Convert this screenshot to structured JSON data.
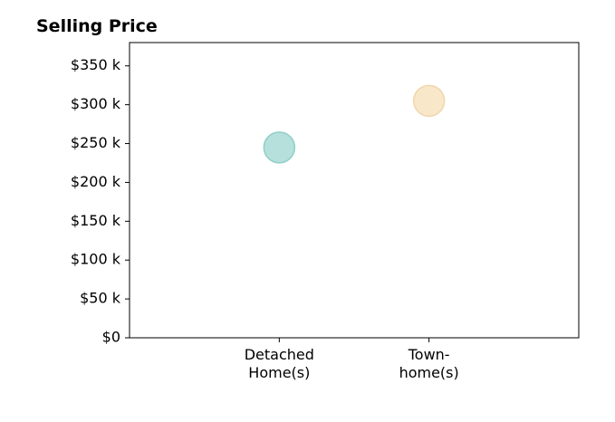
{
  "chart_data": {
    "type": "scatter",
    "title": "Selling Price",
    "xlabel": "",
    "ylabel": "",
    "categories": [
      "Detached\nHome(s)",
      "Town-\nhome(s)"
    ],
    "values": [
      245000,
      305000
    ],
    "point_colors": [
      "#b6e0dc",
      "#f8e7c8"
    ],
    "point_edge_colors": [
      "#8fcfc8",
      "#efd7ae"
    ],
    "ylim": [
      0,
      380000
    ],
    "yticks": [
      0,
      50000,
      100000,
      150000,
      200000,
      250000,
      300000,
      350000
    ],
    "ytick_labels": [
      "$0",
      "$50 k",
      "$100 k",
      "$150 k",
      "$200 k",
      "$250 k",
      "$300 k",
      "$350 k"
    ],
    "xlim": [
      0,
      3
    ],
    "grid": false,
    "legend": "none"
  }
}
